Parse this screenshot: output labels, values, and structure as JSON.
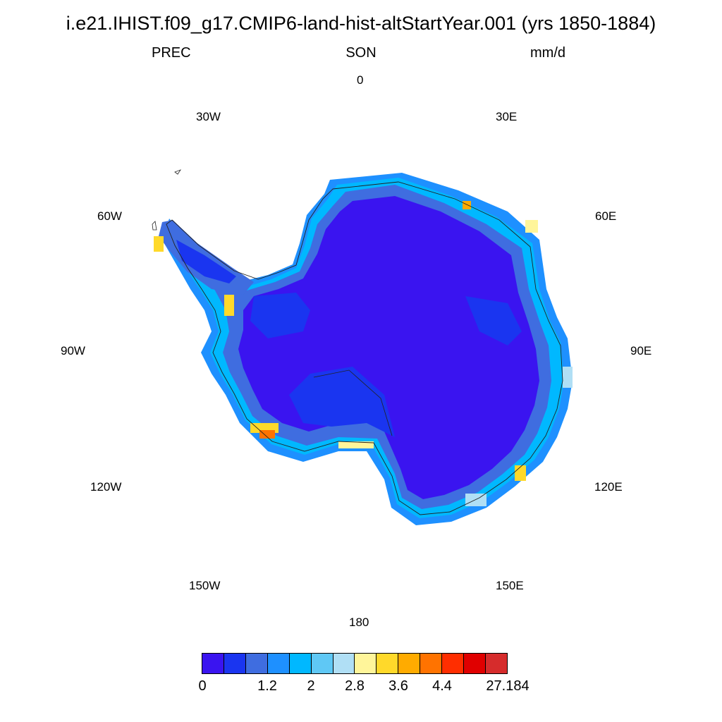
{
  "title": "i.e21.IHIST.f09_g17.CMIP6-land-hist-altStartYear.001 (yrs 1850-1884)",
  "subtitle": {
    "left": "PREC",
    "center": "SON",
    "right": "mm/d"
  },
  "longitude_labels": {
    "lon_0": "0",
    "lon_30e": "30E",
    "lon_60e": "60E",
    "lon_90e": "90E",
    "lon_120e": "120E",
    "lon_150e": "150E",
    "lon_180": "180",
    "lon_150w": "150W",
    "lon_120w": "120W",
    "lon_90w": "90W",
    "lon_60w": "60W",
    "lon_30w": "30W"
  },
  "map": {
    "projection": "south polar stereographic",
    "region": "Antarctica",
    "variable": "precipitation"
  },
  "colorbar": {
    "colors": [
      "#3a14f0",
      "#1a35f0",
      "#3f6de0",
      "#1e90ff",
      "#00b8ff",
      "#5fc8f5",
      "#b0dff5",
      "#fff59a",
      "#ffd92a",
      "#ffab00",
      "#ff7300",
      "#ff2e00",
      "#e00000",
      "#d62c2c"
    ],
    "labels": [
      "0",
      "1.2",
      "2",
      "2.8",
      "3.6",
      "4.4",
      "27.184"
    ]
  }
}
